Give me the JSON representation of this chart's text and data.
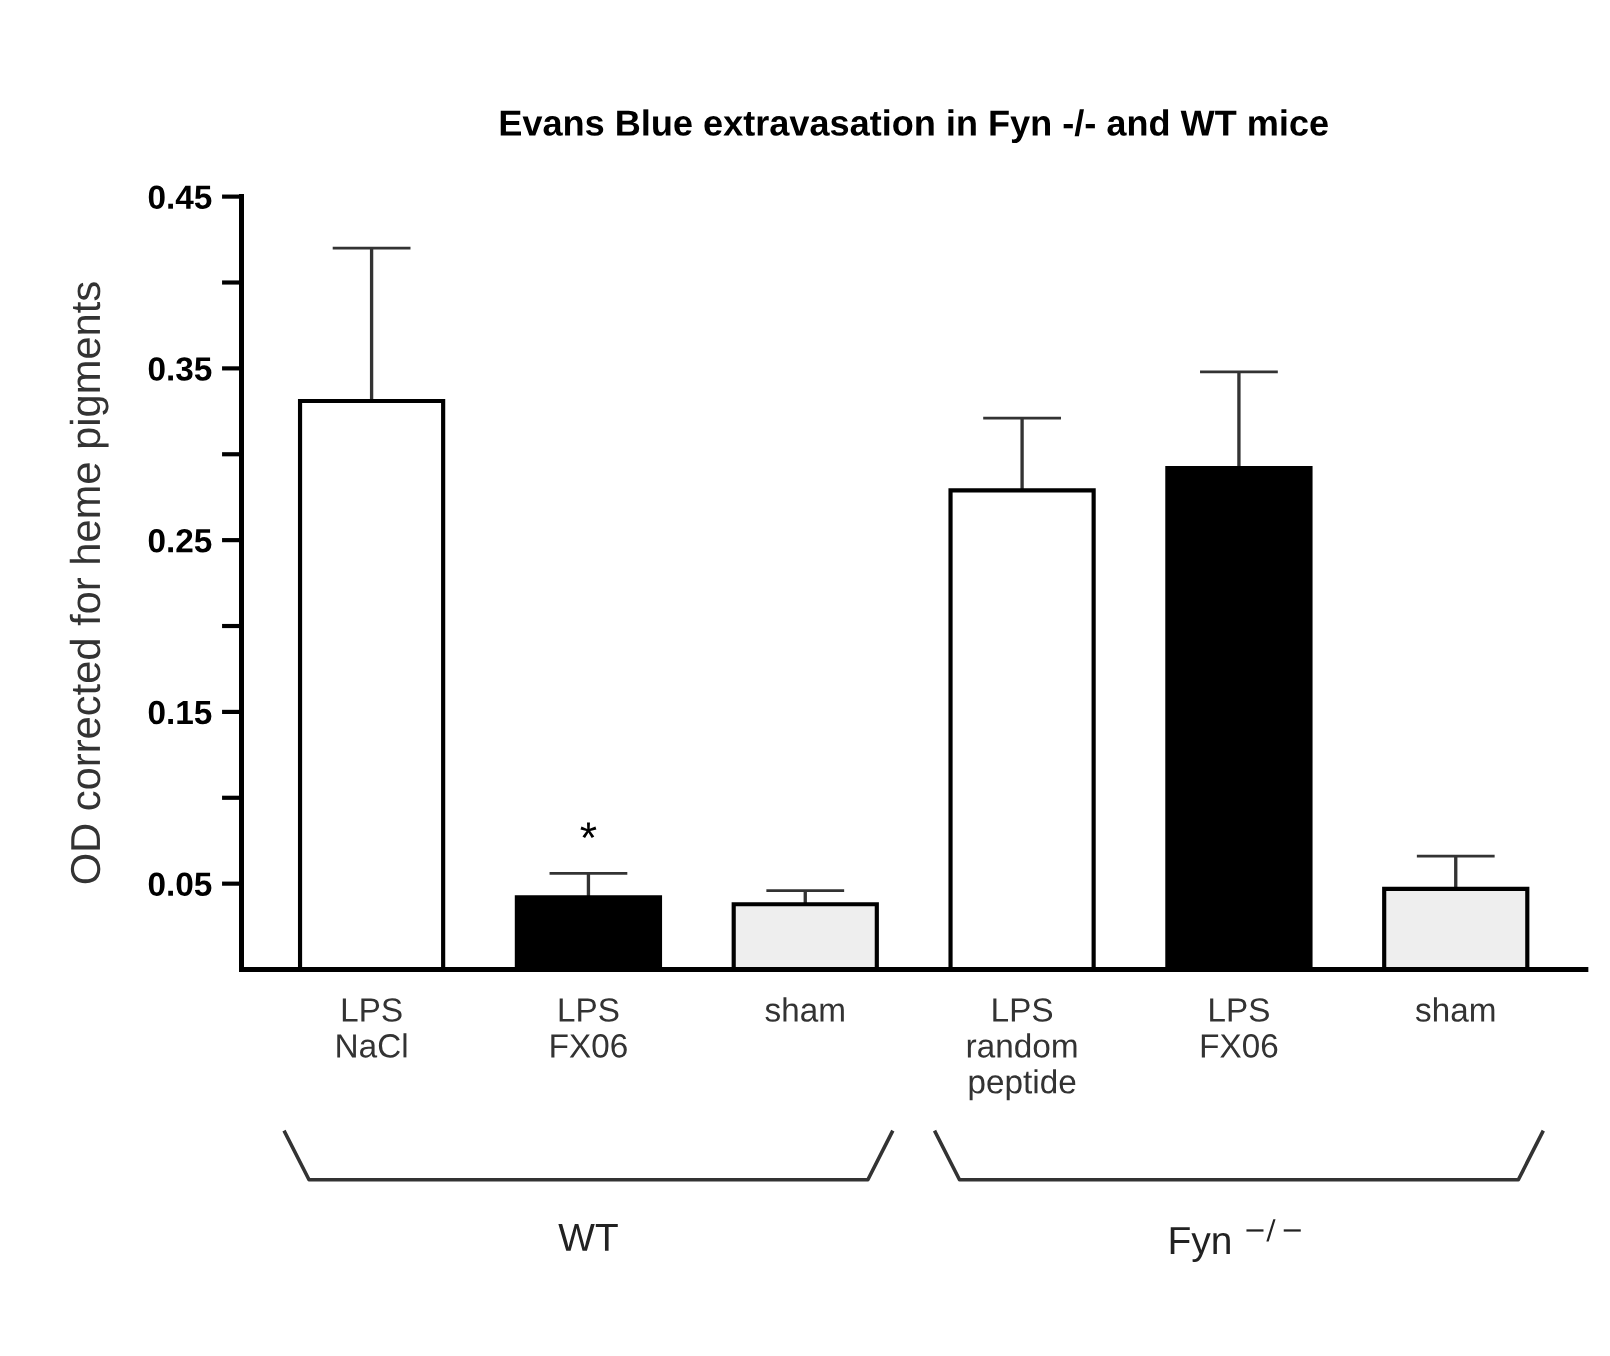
{
  "chart_data": {
    "type": "bar",
    "title": "Evans Blue extravasation in Fyn -/- and WT mice",
    "ylabel": "OD corrected for heme pigments",
    "categories": [
      "LPS\nNaCl",
      "LPS\nFX06",
      "sham",
      "LPS\nrandom\npeptide",
      "LPS\nFX06",
      "sham"
    ],
    "values": [
      0.331,
      0.042,
      0.038,
      0.279,
      0.292,
      0.047
    ],
    "errors": [
      [
        0.331,
        0.42
      ],
      [
        0.042,
        0.056
      ],
      [
        0.038,
        0.046
      ],
      [
        0.279,
        0.321
      ],
      [
        0.292,
        0.348
      ],
      [
        0.047,
        0.066
      ]
    ],
    "colors": [
      "#ffffff",
      "#000000",
      "#eeeeee",
      "#ffffff",
      "#000000",
      "#eeeeee"
    ],
    "ylim": [
      0,
      0.45
    ],
    "yticks": [
      0.05,
      {
        "value": 0.1,
        "label": null
      },
      0.15,
      {
        "value": 0.2,
        "label": null
      },
      0.25,
      {
        "value": 0.3,
        "label": null
      },
      0.35,
      {
        "value": 0.4,
        "label": null
      },
      0.45
    ],
    "annotations": [
      {
        "text": "*",
        "x": "LPS\nFX06",
        "y": 0.056
      },
      "WT",
      "Fyn $^{−/−}$"
    ],
    "grid": false,
    "legend": false
  }
}
